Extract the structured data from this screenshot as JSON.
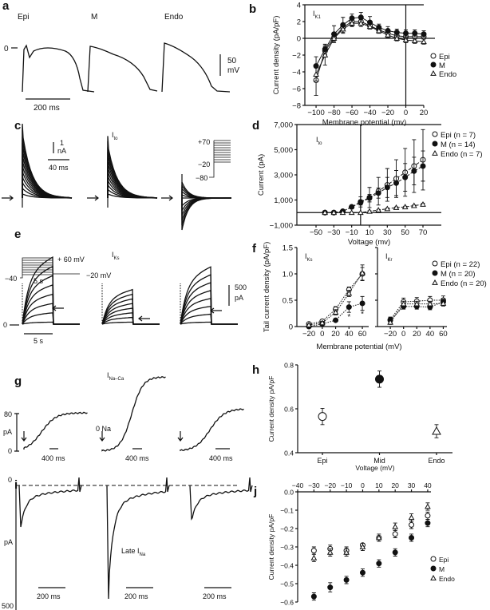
{
  "panels": {
    "a": "a",
    "b": "b",
    "c": "c",
    "d": "d",
    "e": "e",
    "f": "f",
    "g": "g",
    "h": "h",
    "i": "i",
    "j": "j"
  },
  "panel_a": {
    "labels": [
      "Epi",
      "M",
      "Endo"
    ],
    "zero": "0",
    "scale_v": "50",
    "scale_v_unit": "mV",
    "scale_t": "200 ms"
  },
  "panel_c": {
    "title": "I",
    "title_sub": "to",
    "scale_i": "1",
    "scale_i_unit": "nA",
    "scale_t": "40 ms",
    "step_hi": "+70",
    "step_mid": "−20",
    "step_lo": "−80"
  },
  "panel_e": {
    "title": "I",
    "title_sub": "Ks",
    "step_hi": "+ 60 mV",
    "step_hold": "−40",
    "step_dur": "5 s",
    "step_tail": "−20 mV",
    "scale_i": "500",
    "scale_i_unit": "pA",
    "zero": "0",
    "scale_t": "5 s"
  },
  "panel_g": {
    "title": "I",
    "title_sub": "Na–Ca",
    "scale_top": "80",
    "scale_unit": "pA",
    "scale_zero": "0",
    "zero_na": "0 Na",
    "scale_t": "400 ms"
  },
  "panel_i": {
    "title": "Late I",
    "title_sub": "Na",
    "zero": "0",
    "unit": "pA",
    "scale_bottom": "500",
    "scale_t": "200 ms"
  },
  "chart_data": [
    {
      "id": "b",
      "type": "line",
      "annotation": "I",
      "annotation_sub": "K1",
      "xlabel": "Membrane potential (mv)",
      "ylabel": "Current density (pA/pF)",
      "xlim": [
        -112.5,
        20
      ],
      "ylim": [
        -8,
        4
      ],
      "xticks": [
        -100,
        -80,
        -60,
        -40,
        -20,
        0,
        20
      ],
      "xtick_labels": [
        "−100",
        "−80",
        "−60",
        "−40",
        "−20",
        "0",
        "20"
      ],
      "yticks": [
        -8,
        -6,
        -4,
        -2,
        0,
        2,
        4
      ],
      "ytick_labels": [
        "−8",
        "−6",
        "−4",
        "−2",
        "0",
        "2",
        "4"
      ],
      "legend": "right",
      "x": [
        -100,
        -90,
        -80,
        -70,
        -60,
        -50,
        -40,
        -30,
        -20,
        -10,
        0,
        10,
        20
      ],
      "series": [
        {
          "name": "Epi",
          "marker": "open-circle",
          "values": [
            -5,
            -1.5,
            0.1,
            1.3,
            2.0,
            2.0,
            1.5,
            1.0,
            0.6,
            0.3,
            0.2,
            0.2,
            0.2
          ],
          "err": [
            1.8,
            0.5,
            0.4,
            0.4,
            0.5,
            0.4,
            0.3,
            0.3,
            0.3,
            0.3,
            0.3,
            0.3,
            0.3
          ]
        },
        {
          "name": "M",
          "marker": "filled-circle",
          "values": [
            -3.3,
            -1.3,
            0.5,
            1.6,
            2.4,
            2.5,
            1.9,
            1.3,
            0.9,
            0.7,
            0.6,
            0.6,
            0.5
          ],
          "err": [
            1.1,
            0.6,
            1.0,
            0.9,
            0.5,
            0.6,
            0.7,
            0.4,
            0.5,
            0.4,
            0.4,
            0.4,
            0.4
          ]
        },
        {
          "name": "Endo",
          "marker": "open-triangle",
          "values": [
            -4.3,
            -2,
            0,
            1.1,
            1.8,
            1.8,
            1.4,
            0.9,
            0.4,
            0,
            -0.2,
            -0.3,
            -0.4
          ],
          "err": [
            0.8,
            1.2,
            0.5,
            0.5,
            0.4,
            0.4,
            0.3,
            0.3,
            0.3,
            0.3,
            0.3,
            0.3,
            0.3
          ]
        }
      ]
    },
    {
      "id": "d",
      "type": "line",
      "annotation": "I",
      "annotation_sub": "to",
      "xlabel": "Voltage (mv)",
      "ylabel": "Current (pA)",
      "xlim": [
        -71.5,
        90.6
      ],
      "ylim": [
        -1000,
        7000
      ],
      "xticks": [
        -50,
        -30,
        -10,
        10,
        30,
        50,
        70
      ],
      "xtick_labels": [
        "−50",
        "−30",
        "−10",
        "10",
        "30",
        "50",
        "70"
      ],
      "yticks": [
        -1000,
        1000,
        3000,
        5000,
        7000
      ],
      "ytick_labels": [
        "−1,000",
        "1,000",
        "3,000",
        "5,000",
        "7,000"
      ],
      "legend": "right",
      "x": [
        -40,
        -30,
        -20,
        -10,
        0,
        10,
        20,
        30,
        40,
        50,
        60,
        70
      ],
      "series": [
        {
          "name": "Epi (n = 7)",
          "marker": "open-circle",
          "values": [
            0,
            0,
            100,
            450,
            850,
            1200,
            1700,
            2200,
            2700,
            3200,
            3700,
            4200
          ],
          "err": [
            0,
            0,
            50,
            150,
            400,
            800,
            1100,
            1300,
            1500,
            1900,
            2100,
            2400
          ]
        },
        {
          "name": "M (n = 14)",
          "marker": "filled-circle",
          "values": [
            0,
            0,
            100,
            450,
            800,
            1150,
            1550,
            2000,
            2350,
            2800,
            3300,
            3700
          ],
          "err": [
            0,
            0,
            50,
            100,
            200,
            300,
            400,
            800,
            1000,
            1100,
            1100,
            1200
          ]
        },
        {
          "name": "Endo (n = 7)",
          "marker": "open-triangle",
          "values": [
            0,
            0,
            0,
            0,
            0,
            100,
            200,
            300,
            400,
            450,
            550,
            650
          ],
          "err": [
            0,
            0,
            0,
            0,
            0,
            50,
            50,
            50,
            50,
            50,
            50,
            100
          ]
        }
      ]
    },
    {
      "id": "f1",
      "type": "line",
      "annotation": "I",
      "annotation_sub": "Ks",
      "xlabel": "Membrane potential (mV)",
      "ylabel": "Tail current density (pA/pF)",
      "xlim": [
        -38,
        69.5
      ],
      "ylim": [
        0,
        1.5
      ],
      "xticks": [
        -20,
        0,
        20,
        40,
        60
      ],
      "xtick_labels": [
        "−20",
        "0",
        "20",
        "40",
        "60"
      ],
      "yticks": [
        0,
        0.5,
        1.0,
        1.5
      ],
      "ytick_labels": [
        "0",
        "0.5",
        "1.0",
        "1.5"
      ],
      "legend": "right",
      "x": [
        -20,
        0,
        20,
        40,
        60
      ],
      "significance": [
        {
          "x": 40,
          "y": 0.2,
          "label": "*"
        },
        {
          "x": 60,
          "y": 0.25,
          "label": "*"
        }
      ],
      "series": [
        {
          "name": "Epi (n = 22)",
          "marker": "open-circle",
          "values": [
            0.05,
            0.1,
            0.33,
            0.7,
            1.0
          ],
          "err": [
            0.02,
            0.03,
            0.05,
            0.05,
            0.12
          ]
        },
        {
          "name": "M (n = 20)",
          "marker": "filled-circle",
          "values": [
            0,
            0.05,
            0.12,
            0.37,
            0.44
          ],
          "err": [
            0.02,
            0.03,
            0.03,
            0.1,
            0.13
          ]
        },
        {
          "name": "Endo (n = 20)",
          "marker": "open-triangle",
          "values": [
            0.03,
            0.07,
            0.27,
            0.63,
            1.02
          ],
          "err": [
            0.02,
            0.03,
            0.05,
            0.06,
            0.15
          ]
        }
      ]
    },
    {
      "id": "f2",
      "type": "line",
      "annotation": "I",
      "annotation_sub": "Kr",
      "xlabel": "",
      "ylabel": "",
      "xlim": [
        -39.4,
        65.5
      ],
      "ylim": [
        0,
        1.5
      ],
      "xticks": [
        -20,
        0,
        20,
        40,
        60
      ],
      "xtick_labels": [
        "−20",
        "0",
        "20",
        "40",
        "60"
      ],
      "yticks": [
        0,
        0.5,
        1.0,
        1.5
      ],
      "ytick_labels": [],
      "legend": "none",
      "x": [
        -20,
        0,
        20,
        40,
        60
      ],
      "series": [
        {
          "name": "Epi",
          "marker": "open-circle",
          "values": [
            0.13,
            0.47,
            0.48,
            0.5,
            0.5
          ],
          "err": [
            0.05,
            0.07,
            0.07,
            0.07,
            0.08
          ]
        },
        {
          "name": "M",
          "marker": "filled-circle",
          "values": [
            0.12,
            0.38,
            0.38,
            0.37,
            0.47
          ],
          "err": [
            0.05,
            0.05,
            0.05,
            0.05,
            0.05
          ]
        },
        {
          "name": "Endo",
          "marker": "open-triangle",
          "values": [
            0.08,
            0.43,
            0.43,
            0.43,
            0.44
          ],
          "err": [
            0.04,
            0.05,
            0.05,
            0.05,
            0.05
          ]
        }
      ]
    },
    {
      "id": "h",
      "type": "scatter",
      "xlabel": "Voltage (mV)",
      "ylabel": "Current density pA/pF",
      "categories": [
        "Epi",
        "Mid",
        "Endo"
      ],
      "xlim": [
        -0.434,
        2.28
      ],
      "ylim": [
        0.4,
        0.8
      ],
      "yticks": [
        0.4,
        0.6,
        0.8
      ],
      "ytick_labels": [
        "0.4",
        "0.6",
        "0.8"
      ],
      "legend": "none",
      "series": [
        {
          "name": "Current density",
          "markers": [
            "open-circle",
            "filled-circle",
            "open-triangle"
          ],
          "values": [
            0.565,
            0.735,
            0.498
          ],
          "err": [
            0.037,
            0.037,
            0.03
          ]
        }
      ]
    },
    {
      "id": "j",
      "type": "scatter",
      "xlabel": "",
      "ylabel": "Current density pA/pF",
      "xlim": [
        -40,
        42
      ],
      "ylim": [
        -0.6,
        0.0
      ],
      "xticks": [
        -40,
        -30,
        -20,
        -10,
        0,
        10,
        20,
        30,
        40
      ],
      "xtick_labels": [
        "−40",
        "−30",
        "−20",
        "−10",
        "0",
        "10",
        "20",
        "30",
        "40"
      ],
      "yticks": [
        0,
        -0.1,
        -0.2,
        -0.3,
        -0.4,
        -0.5,
        -0.6
      ],
      "ytick_labels": [
        "0.0",
        "−0.1",
        "−0.2",
        "−0.3",
        "−0.4",
        "−0.5",
        "−0.6"
      ],
      "legend": "right",
      "x": [
        -30,
        -20,
        -10,
        0,
        10,
        20,
        30,
        40
      ],
      "series": [
        {
          "name": "Epi",
          "marker": "open-circle",
          "values": [
            -0.32,
            -0.31,
            -0.32,
            -0.29,
            -0.25,
            -0.23,
            -0.18,
            -0.13
          ],
          "err": [
            0.02,
            0.02,
            0.02,
            0.01,
            0.01,
            0.02,
            0.02,
            0.02
          ]
        },
        {
          "name": "M",
          "marker": "filled-circle",
          "values": [
            -0.57,
            -0.52,
            -0.48,
            -0.44,
            -0.39,
            -0.33,
            -0.25,
            -0.17
          ],
          "err": [
            0.02,
            0.025,
            0.02,
            0.02,
            0.02,
            0.02,
            0.02,
            0.02
          ]
        },
        {
          "name": "Endo",
          "marker": "open-triangle",
          "values": [
            -0.36,
            -0.33,
            -0.33,
            -0.3,
            -0.25,
            -0.19,
            -0.14,
            -0.08
          ],
          "err": [
            0.02,
            0.02,
            0.02,
            0.02,
            0.02,
            0.02,
            0.02,
            0.02
          ]
        }
      ]
    }
  ]
}
